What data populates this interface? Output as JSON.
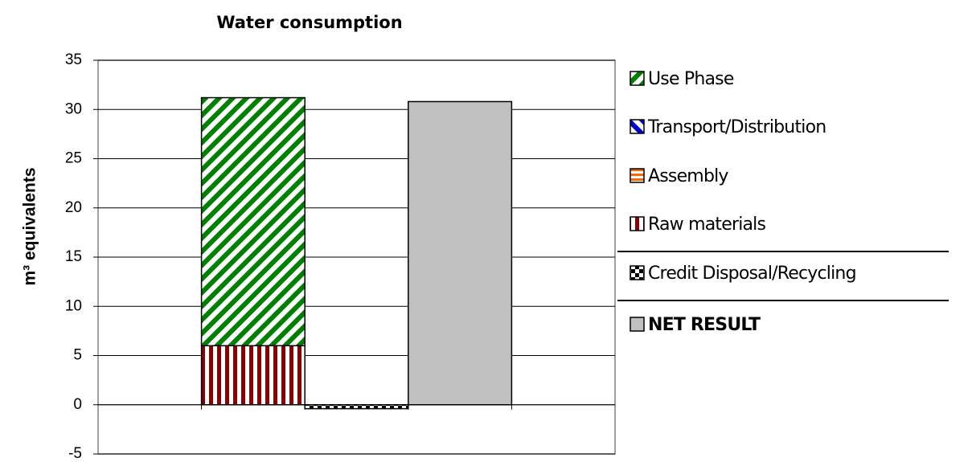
{
  "chart_data": {
    "type": "stacked_bar",
    "title": "Water consumption",
    "y_label": "m³ equivalents",
    "categories": [
      null,
      null,
      null
    ],
    "series": [
      {
        "name": "Use Phase",
        "color": "#008000",
        "pattern": "diagonal-up",
        "values": [
          25.2,
          null,
          null
        ]
      },
      {
        "name": "Transport/Distribution",
        "color": "#0000cc",
        "pattern": "diagonal-down",
        "values": [
          0,
          null,
          null
        ]
      },
      {
        "name": "Assembly",
        "color": "#ff6600",
        "pattern": "horizontal",
        "values": [
          0,
          null,
          null
        ]
      },
      {
        "name": "Raw materials",
        "color": "#8b0000",
        "pattern": "vertical",
        "values": [
          6,
          null,
          null
        ]
      },
      {
        "name": "Credit Disposal/Recycling",
        "color": "#000000",
        "pattern": "checker",
        "values": [
          null,
          -0.4,
          null
        ]
      },
      {
        "name": "NET RESULT",
        "color": "#c0c0c0",
        "pattern": "solid",
        "bold": true,
        "values": [
          null,
          null,
          30.8
        ]
      }
    ],
    "ylim": [
      -5,
      35
    ],
    "yticks": [
      -5,
      0,
      5,
      10,
      15,
      20,
      25,
      30,
      35
    ],
    "grid": true
  }
}
